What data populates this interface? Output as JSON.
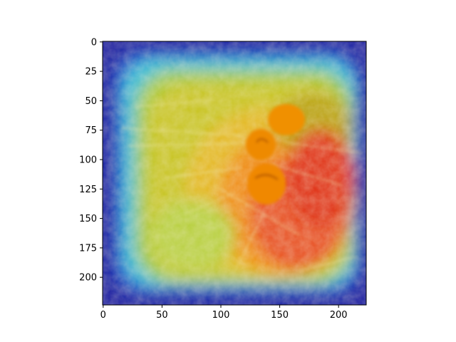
{
  "chart_data": {
    "type": "heatmap",
    "title": "",
    "xlabel": "",
    "ylabel": "",
    "xlim": [
      0,
      224
    ],
    "ylim": [
      224,
      0
    ],
    "x_ticks": [
      0,
      50,
      100,
      150,
      200
    ],
    "y_ticks": [
      0,
      25,
      50,
      75,
      100,
      125,
      150,
      175,
      200
    ],
    "y_axis_inverted": true,
    "grid": false,
    "legend": "none",
    "colormap": "jet",
    "background_image": "close-up photo of orange peppers on dry grass",
    "overlay_description": "attention heatmap overlay: low (blue) at borders, high (red) toward center-right",
    "colors": {
      "low": "#00008f",
      "mid_low": "#00c0ff",
      "mid": "#c8c800",
      "mid_high": "#ff8c00",
      "high": "#e01000",
      "pepper": "#f08a00",
      "axis": "#000000"
    }
  }
}
